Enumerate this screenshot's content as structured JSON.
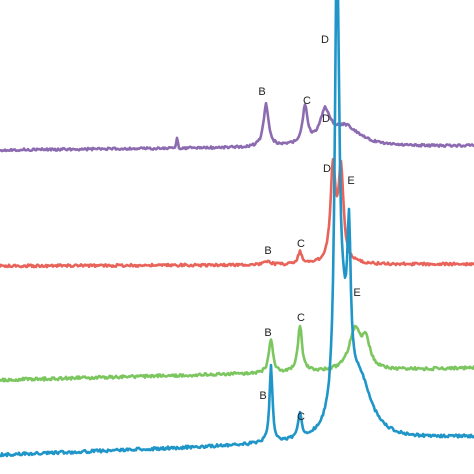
{
  "chart_data": {
    "type": "line",
    "xlim": [
      0,
      474
    ],
    "ylim": [
      0,
      1
    ],
    "grid": false,
    "legend": "none",
    "series": [
      {
        "color": "#8c6bb1",
        "baseline": 150,
        "noise": 1.2,
        "drift": -4,
        "spikes": [
          {
            "x": 177,
            "h": 10,
            "w": 1.2
          }
        ],
        "peaks": [
          {
            "x": 266,
            "h": 42,
            "w": 3
          },
          {
            "x": 305,
            "h": 36,
            "w": 3
          },
          {
            "x": 325,
            "h": 30,
            "w": 6
          },
          {
            "x": 345,
            "h": 20,
            "w": 18
          }
        ],
        "labels": [
          {
            "text": "B",
            "x": 262,
            "y": 95
          },
          {
            "text": "C",
            "x": 307,
            "y": 104
          },
          {
            "text": "D",
            "x": 326,
            "y": 122
          }
        ]
      },
      {
        "color": "#e8635a",
        "baseline": 266,
        "noise": 1.3,
        "drift": -2,
        "spikes": [],
        "peaks": [
          {
            "x": 268,
            "h": 4,
            "w": 3
          },
          {
            "x": 300,
            "h": 12,
            "w": 2.5
          },
          {
            "x": 333,
            "h": 95,
            "w": 3
          },
          {
            "x": 341,
            "h": 92,
            "w": 3
          }
        ],
        "labels": [
          {
            "text": "B",
            "x": 268,
            "y": 254
          },
          {
            "text": "C",
            "x": 301,
            "y": 247
          },
          {
            "text": "D",
            "x": 327,
            "y": 172
          },
          {
            "text": "E",
            "x": 351,
            "y": 184
          }
        ]
      },
      {
        "color": "#7cc660",
        "baseline": 380,
        "noise": 1.5,
        "drift": -12,
        "spikes": [],
        "peaks": [
          {
            "x": 271,
            "h": 33,
            "w": 2.5
          },
          {
            "x": 300,
            "h": 46,
            "w": 2.5
          },
          {
            "x": 355,
            "h": 40,
            "w": 7
          },
          {
            "x": 366,
            "h": 25,
            "w": 5
          }
        ],
        "labels": [
          {
            "text": "B",
            "x": 268,
            "y": 336
          },
          {
            "text": "C",
            "x": 301,
            "y": 321
          },
          {
            "text": "E",
            "x": 357,
            "y": 296
          }
        ]
      },
      {
        "color": "#1f95c8",
        "baseline": 455,
        "noise": 1.5,
        "drift": -18,
        "spikes": [],
        "peaks": [
          {
            "x": 271,
            "h": 76,
            "w": 1.8
          },
          {
            "x": 300,
            "h": 24,
            "w": 2.2
          },
          {
            "x": 337,
            "h": 480,
            "w": 2.4
          },
          {
            "x": 343,
            "h": 80,
            "w": 6
          },
          {
            "x": 349,
            "h": 140,
            "w": 2
          },
          {
            "x": 360,
            "h": 55,
            "w": 14
          }
        ],
        "labels": [
          {
            "text": "B",
            "x": 263,
            "y": 399
          },
          {
            "text": "C",
            "x": 301,
            "y": 420
          },
          {
            "text": "D",
            "x": 325,
            "y": 43
          }
        ]
      }
    ]
  }
}
